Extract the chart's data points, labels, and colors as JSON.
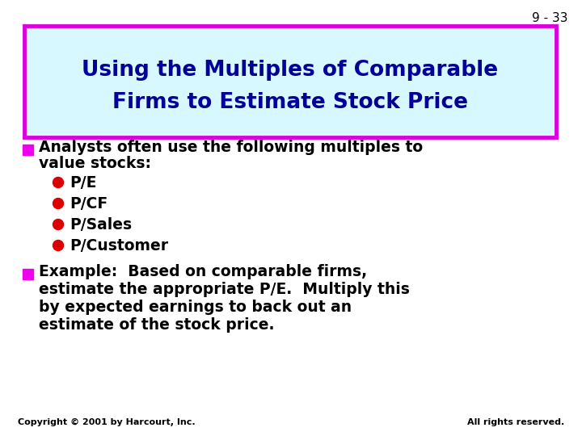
{
  "slide_number": "9 - 33",
  "title_line1": "Using the Multiples of Comparable",
  "title_line2": "Firms to Estimate Stock Price",
  "title_bg_color": "#d8f8ff",
  "title_border_color": "#dd00dd",
  "title_text_color": "#000099",
  "background_color": "#ffffff",
  "slide_num_color": "#000000",
  "bullet_square_color": "#ee00ee",
  "sub_bullets": [
    "P/E",
    "P/CF",
    "P/Sales",
    "P/Customer"
  ],
  "sub_bullet_color": "#dd0000",
  "body_text_color": "#000000",
  "footer_left": "Copyright © 2001 by Harcourt, Inc.",
  "footer_right": "All rights reserved.",
  "footer_color": "#000000",
  "body_fontsize": 13.5,
  "title_fontsize": 19,
  "slide_num_fontsize": 11,
  "footer_fontsize": 8
}
